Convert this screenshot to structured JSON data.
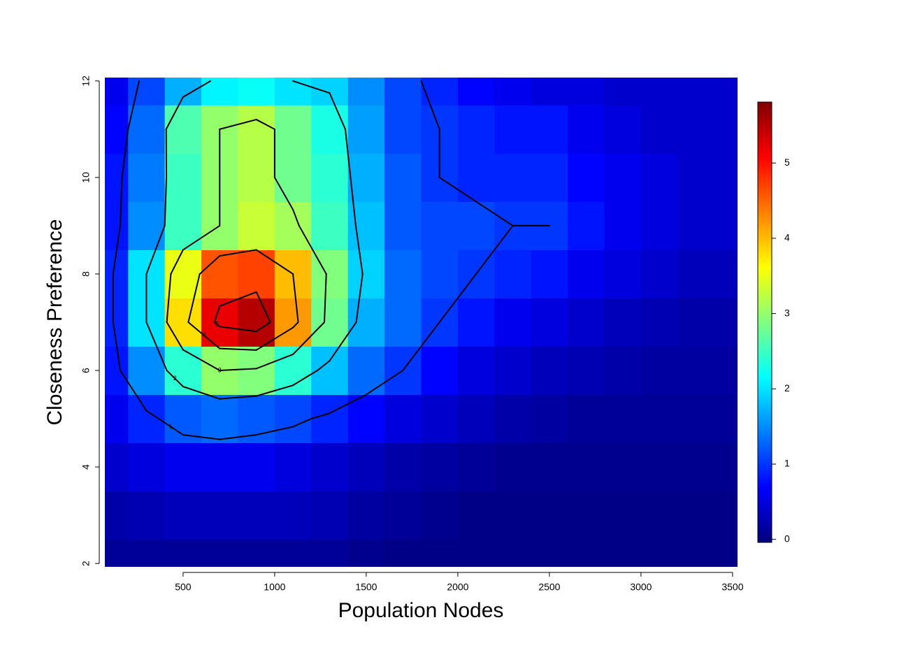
{
  "chart_data": {
    "type": "heatmap",
    "x_label": "Population Nodes",
    "y_label": "Closeness Preference",
    "x": [
      100,
      300,
      500,
      700,
      900,
      1100,
      1300,
      1500,
      1700,
      1900,
      2100,
      2300,
      2500,
      2700,
      2900,
      3100,
      3300,
      3500
    ],
    "y": [
      2,
      3,
      4,
      5,
      6,
      7,
      8,
      9,
      10,
      11,
      12
    ],
    "z": [
      [
        0.1,
        0.1,
        0.1,
        0.1,
        0.1,
        0.1,
        0.1,
        0.05,
        0,
        0,
        0,
        0,
        0,
        0,
        0,
        0,
        0,
        0
      ],
      [
        0.2,
        0.25,
        0.3,
        0.3,
        0.3,
        0.3,
        0.25,
        0.15,
        0.1,
        0.05,
        0,
        0,
        0,
        0,
        0,
        0,
        0,
        0
      ],
      [
        0.4,
        0.5,
        0.6,
        0.6,
        0.6,
        0.5,
        0.4,
        0.3,
        0.2,
        0.15,
        0.1,
        0.05,
        0.05,
        0.05,
        0.05,
        0.05,
        0.05,
        0.05
      ],
      [
        0.6,
        0.9,
        1.2,
        1.3,
        1.2,
        1.1,
        0.9,
        0.7,
        0.5,
        0.4,
        0.3,
        0.2,
        0.15,
        0.1,
        0.1,
        0.1,
        0.1,
        0.1
      ],
      [
        0.8,
        1.5,
        2.4,
        3.0,
        2.9,
        2.4,
        1.8,
        1.3,
        1.0,
        0.7,
        0.5,
        0.4,
        0.3,
        0.25,
        0.2,
        0.15,
        0.15,
        0.15
      ],
      [
        0.9,
        2.0,
        3.8,
        5.2,
        5.5,
        4.2,
        2.8,
        1.7,
        1.3,
        1.0,
        0.8,
        0.6,
        0.5,
        0.4,
        0.3,
        0.25,
        0.2,
        0.2
      ],
      [
        0.9,
        2.0,
        3.5,
        4.6,
        4.7,
        4.0,
        2.9,
        1.9,
        1.3,
        1.1,
        1.0,
        0.9,
        0.8,
        0.6,
        0.5,
        0.4,
        0.3,
        0.3
      ],
      [
        0.8,
        1.5,
        2.5,
        3.0,
        3.3,
        3.1,
        2.5,
        1.8,
        1.2,
        1.1,
        1.1,
        1.0,
        1.0,
        0.8,
        0.6,
        0.5,
        0.4,
        0.4
      ],
      [
        0.8,
        1.4,
        2.5,
        3.0,
        3.2,
        2.8,
        2.4,
        1.7,
        1.2,
        1.0,
        0.9,
        0.9,
        0.9,
        0.7,
        0.6,
        0.5,
        0.4,
        0.4
      ],
      [
        0.7,
        1.3,
        2.6,
        3.0,
        3.2,
        2.8,
        2.3,
        1.6,
        1.1,
        1.0,
        0.9,
        0.8,
        0.8,
        0.6,
        0.5,
        0.4,
        0.4,
        0.4
      ],
      [
        0.6,
        1.1,
        1.7,
        2.1,
        2.2,
        2.0,
        1.9,
        1.5,
        1.1,
        0.9,
        0.7,
        0.6,
        0.5,
        0.5,
        0.4,
        0.4,
        0.4,
        0.4
      ]
    ],
    "colors": [
      "#00007F",
      "#0000FF",
      "#007FFF",
      "#00FFFF",
      "#7FFF7F",
      "#FFFF00",
      "#FF7F00",
      "#FF0000",
      "#7F0000"
    ],
    "contour_levels": [
      1,
      2,
      3,
      4,
      5
    ],
    "xlim": [
      73,
      3527
    ],
    "ylim": [
      1.93,
      12.07
    ],
    "zlim": [
      -0.04,
      5.81
    ],
    "xticks": [
      500,
      1000,
      1500,
      2000,
      2500,
      3000,
      3500
    ],
    "yticks": [
      2,
      4,
      6,
      8,
      10,
      12
    ],
    "zticks": [
      0,
      1,
      2,
      3,
      4,
      5
    ]
  }
}
